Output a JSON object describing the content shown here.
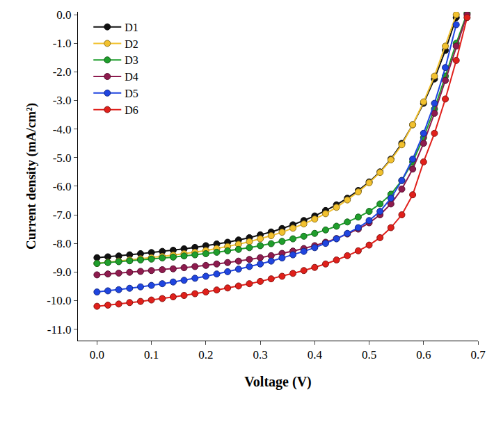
{
  "chart_data": {
    "type": "line",
    "x_label": "Voltage (V)",
    "y_label": "Current density (mA/cm²)",
    "x": [
      0.0,
      0.02,
      0.04,
      0.06,
      0.08,
      0.1,
      0.12,
      0.14,
      0.16,
      0.18,
      0.2,
      0.22,
      0.24,
      0.26,
      0.28,
      0.3,
      0.32,
      0.34,
      0.36,
      0.38,
      0.4,
      0.42,
      0.44,
      0.46,
      0.48,
      0.5,
      0.52,
      0.54,
      0.56,
      0.58,
      0.6,
      0.62,
      0.64,
      0.66,
      0.68
    ],
    "series": [
      {
        "name": "D1",
        "color": "#111111",
        "marker": "circle",
        "line_style": "solid",
        "values": [
          -8.5,
          -8.47,
          -8.44,
          -8.4,
          -8.36,
          -8.32,
          -8.28,
          -8.24,
          -8.19,
          -8.14,
          -8.08,
          -8.02,
          -7.96,
          -7.88,
          -7.8,
          -7.7,
          -7.6,
          -7.48,
          -7.35,
          -7.2,
          -7.04,
          -6.85,
          -6.65,
          -6.42,
          -6.15,
          -5.85,
          -5.5,
          -5.05,
          -4.5,
          -3.85,
          -3.1,
          -2.25,
          -1.25,
          -0.1,
          null
        ]
      },
      {
        "name": "D2",
        "color": "#f2c12e",
        "marker": "circle",
        "line_style": "solid",
        "values": [
          -8.7,
          -8.66,
          -8.62,
          -8.58,
          -8.54,
          -8.5,
          -8.46,
          -8.41,
          -8.36,
          -8.31,
          -8.25,
          -8.18,
          -8.11,
          -8.03,
          -7.94,
          -7.84,
          -7.73,
          -7.61,
          -7.47,
          -7.32,
          -7.15,
          -6.96,
          -6.74,
          -6.48,
          -6.2,
          -5.88,
          -5.52,
          -5.08,
          -4.55,
          -3.85,
          -3.05,
          -2.15,
          -1.1,
          0.0,
          null
        ]
      },
      {
        "name": "D3",
        "color": "#1f9e2c",
        "marker": "circle",
        "line_style": "solid",
        "values": [
          -8.7,
          -8.67,
          -8.64,
          -8.61,
          -8.58,
          -8.55,
          -8.51,
          -8.48,
          -8.44,
          -8.4,
          -8.36,
          -8.31,
          -8.26,
          -8.21,
          -8.15,
          -8.08,
          -8.01,
          -7.93,
          -7.84,
          -7.75,
          -7.65,
          -7.53,
          -7.4,
          -7.25,
          -7.08,
          -6.88,
          -6.62,
          -6.28,
          -5.8,
          -5.15,
          -4.3,
          -3.3,
          -2.15,
          -1.0,
          0.05
        ]
      },
      {
        "name": "D4",
        "color": "#8e1b4e",
        "marker": "circle",
        "line_style": "solid",
        "values": [
          -9.1,
          -9.07,
          -9.04,
          -9.01,
          -8.98,
          -8.95,
          -8.92,
          -8.89,
          -8.85,
          -8.81,
          -8.77,
          -8.72,
          -8.67,
          -8.62,
          -8.56,
          -8.5,
          -8.43,
          -8.35,
          -8.27,
          -8.18,
          -8.08,
          -7.96,
          -7.83,
          -7.67,
          -7.5,
          -7.28,
          -7.0,
          -6.62,
          -6.1,
          -5.4,
          -4.5,
          -3.45,
          -2.3,
          -1.1,
          0.0
        ]
      },
      {
        "name": "D5",
        "color": "#1f45e0",
        "marker": "circle",
        "line_style": "solid",
        "values": [
          -9.7,
          -9.66,
          -9.62,
          -9.57,
          -9.52,
          -9.47,
          -9.41,
          -9.35,
          -9.29,
          -9.22,
          -9.15,
          -9.07,
          -8.99,
          -8.9,
          -8.81,
          -8.72,
          -8.62,
          -8.51,
          -8.4,
          -8.28,
          -8.15,
          -8.0,
          -7.84,
          -7.65,
          -7.45,
          -7.2,
          -6.88,
          -6.42,
          -5.8,
          -5.05,
          -4.15,
          -3.1,
          -1.85,
          -0.35,
          null
        ]
      },
      {
        "name": "D6",
        "color": "#e0201b",
        "marker": "circle",
        "line_style": "solid",
        "values": [
          -10.2,
          -10.16,
          -10.12,
          -10.07,
          -10.03,
          -9.98,
          -9.93,
          -9.87,
          -9.82,
          -9.76,
          -9.7,
          -9.63,
          -9.56,
          -9.49,
          -9.41,
          -9.33,
          -9.24,
          -9.15,
          -9.05,
          -8.95,
          -8.84,
          -8.72,
          -8.58,
          -8.43,
          -8.26,
          -8.06,
          -7.8,
          -7.45,
          -7.0,
          -6.3,
          -5.15,
          -4.15,
          -2.95,
          -1.6,
          -0.1
        ]
      }
    ],
    "xlim": [
      -0.035,
      0.7
    ],
    "xticks": [
      {
        "value": 0,
        "label": "0.0"
      },
      0.1,
      0.2,
      0.3,
      0.4,
      0.5,
      0.6,
      0.7
    ],
    "ylim": [
      -11.4,
      0.1
    ],
    "yticks": [
      {
        "value": 0,
        "label": "0.0"
      },
      {
        "value": -1,
        "label": "-1.0"
      },
      {
        "value": -2,
        "label": "-2.0"
      },
      {
        "value": -3,
        "label": "-3.0"
      },
      {
        "value": -4,
        "label": "-4.0"
      },
      {
        "value": -5,
        "label": "-5.0"
      },
      {
        "value": -6,
        "label": "-6.0"
      },
      {
        "value": -7,
        "label": "-7.0"
      },
      {
        "value": -8,
        "label": "-8.0"
      },
      {
        "value": -9,
        "label": "-9.0"
      },
      {
        "value": -10,
        "label": "-10.0"
      },
      {
        "value": -11,
        "label": "-11.0"
      }
    ],
    "grid": false,
    "legend": "upper left"
  }
}
